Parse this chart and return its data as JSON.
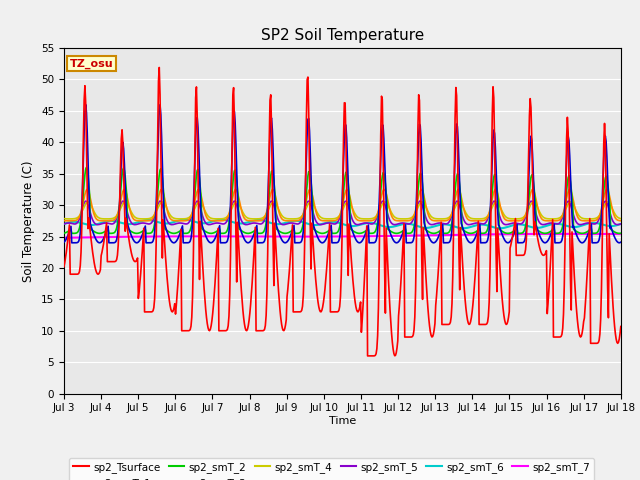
{
  "title": "SP2 Soil Temperature",
  "ylabel": "Soil Temperature (C)",
  "xlabel": "Time",
  "xlim_days": [
    3,
    18
  ],
  "ylim": [
    0,
    55
  ],
  "yticks": [
    0,
    5,
    10,
    15,
    20,
    25,
    30,
    35,
    40,
    45,
    50,
    55
  ],
  "xtick_labels": [
    "Jul 3",
    "Jul 4",
    "Jul 5",
    "Jul 6",
    "Jul 7",
    "Jul 8",
    "Jul 9",
    "Jul 10",
    "Jul 11",
    "Jul 12",
    "Jul 13",
    "Jul 14",
    "Jul 15",
    "Jul 16",
    "Jul 17",
    "Jul 18"
  ],
  "tz_label": "TZ_osu",
  "series_colors": {
    "sp2_Tsurface": "#ff0000",
    "sp2_smT_1": "#0000cc",
    "sp2_smT_2": "#00cc00",
    "sp2_smT_3": "#ff8800",
    "sp2_smT_4": "#cccc00",
    "sp2_smT_5": "#8800cc",
    "sp2_smT_6": "#00cccc",
    "sp2_smT_7": "#ff00ff"
  },
  "plot_bg_color": "#e8e8e8",
  "fig_bg_color": "#f0f0f0"
}
